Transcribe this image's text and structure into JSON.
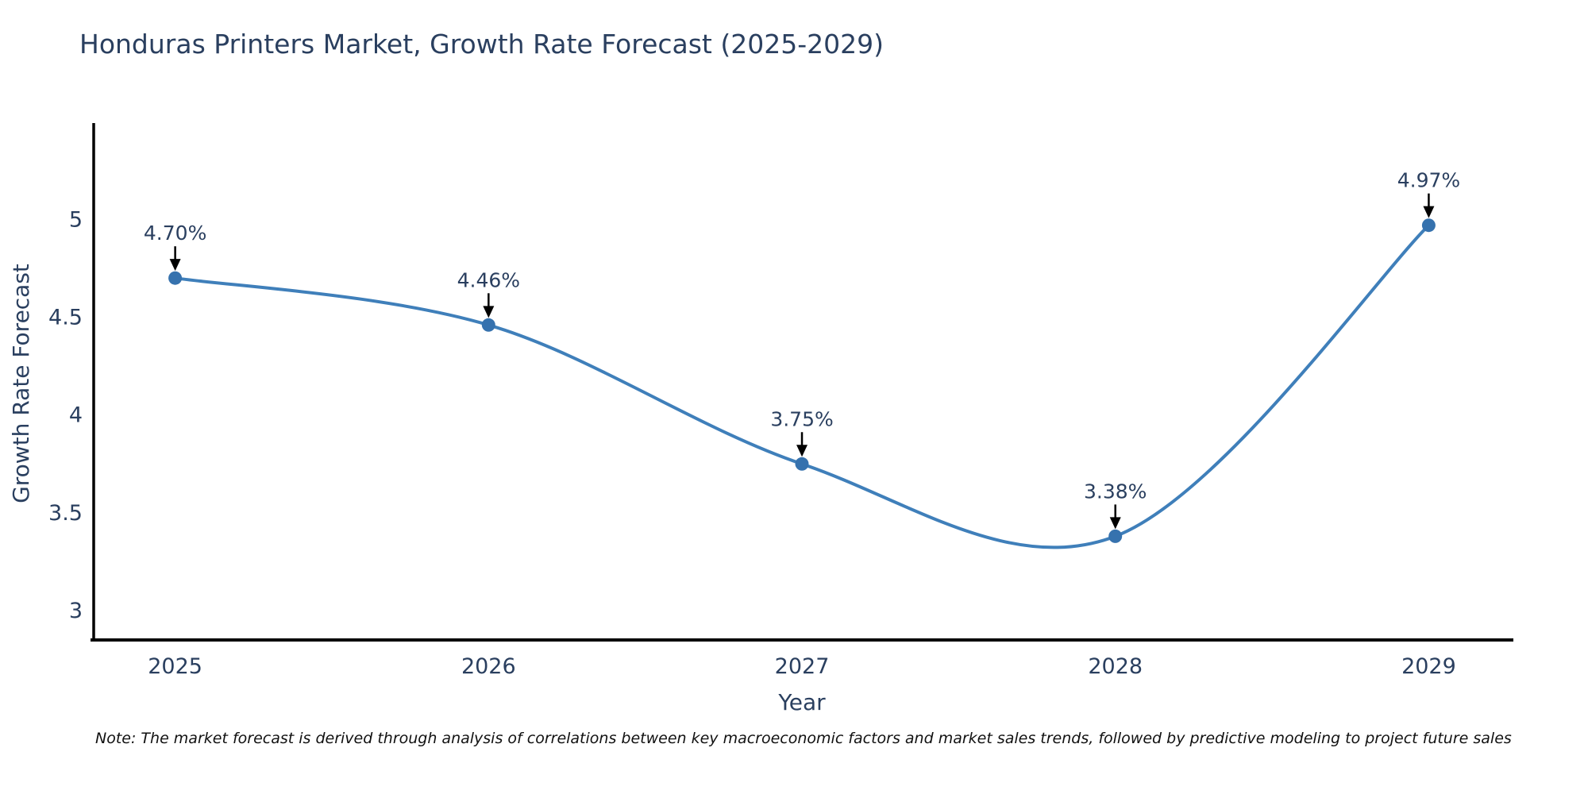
{
  "title": "Honduras Printers Market, Growth Rate Forecast (2025-2029)",
  "note": "Note: The market forecast is derived through analysis of correlations between key macroeconomic factors and market sales trends, followed by predictive modeling to project future sales",
  "chart_data": {
    "type": "line",
    "title": "Honduras Printers Market, Growth Rate Forecast (2025-2029)",
    "x": [
      2025,
      2026,
      2027,
      2028,
      2029
    ],
    "y": [
      4.7,
      4.46,
      3.75,
      3.38,
      4.97
    ],
    "point_labels": [
      "4.70%",
      "4.46%",
      "3.75%",
      "3.38%",
      "4.97%"
    ],
    "xticks": [
      "2025",
      "2026",
      "2027",
      "2028",
      "2029"
    ],
    "yticks": [
      3,
      3.5,
      4,
      4.5,
      5
    ],
    "ytick_labels": [
      "3",
      "3.5",
      "4",
      "4.5",
      "5"
    ],
    "xlabel": "Year",
    "ylabel": "Growth Rate Forecast",
    "xlim": [
      2024.74,
      2029.27
    ],
    "ylim": [
      2.85,
      5.48
    ],
    "grid": false,
    "legend": "none",
    "line_shape": "spline",
    "line_color": "#3f7fba",
    "marker_color": "#3672ae",
    "axis_color": "#000000",
    "text_color": "#2a3f5f",
    "annotation_color": "#000000"
  }
}
